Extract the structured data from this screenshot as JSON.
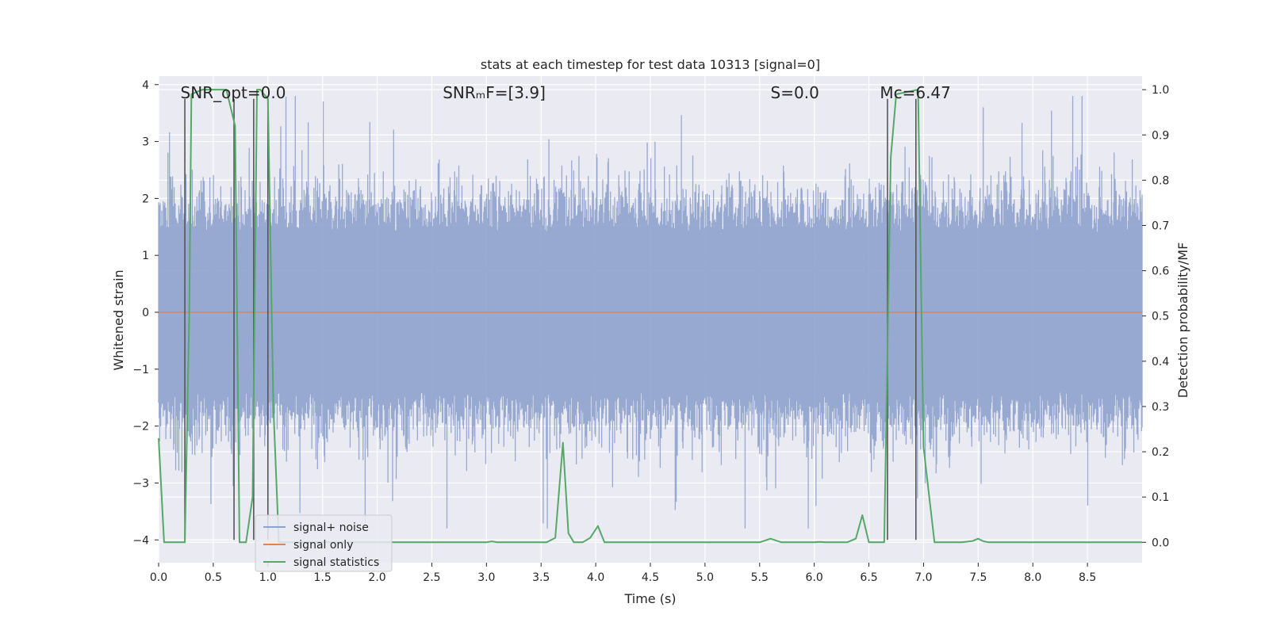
{
  "chart_data": {
    "type": "line",
    "title": "stats at each timestep for test data 10313 [signal=0]",
    "xlabel": "Time (s)",
    "ylabel_left": "Whitened strain",
    "ylabel_right": "Detection probability/MF",
    "xlim": [
      0,
      9.0
    ],
    "ylim_left": [
      -4.4,
      4.15
    ],
    "ylim_right": [
      -0.045,
      1.03
    ],
    "x_ticks": [
      "0.0",
      "0.5",
      "1.0",
      "1.5",
      "2.0",
      "2.5",
      "3.0",
      "3.5",
      "4.0",
      "4.5",
      "5.0",
      "5.5",
      "6.0",
      "6.5",
      "7.0",
      "7.5",
      "8.0",
      "8.5"
    ],
    "x_tick_values": [
      0,
      0.5,
      1.0,
      1.5,
      2.0,
      2.5,
      3.0,
      3.5,
      4.0,
      4.5,
      5.0,
      5.5,
      6.0,
      6.5,
      7.0,
      7.5,
      8.0,
      8.5
    ],
    "y_left_ticks": [
      "−4",
      "−3",
      "−2",
      "−1",
      "0",
      "1",
      "2",
      "3",
      "4"
    ],
    "y_left_tick_values": [
      -4,
      -3,
      -2,
      -1,
      0,
      1,
      2,
      3,
      4
    ],
    "y_right_ticks": [
      "0.0",
      "0.1",
      "0.2",
      "0.3",
      "0.4",
      "0.5",
      "0.6",
      "0.7",
      "0.8",
      "0.9",
      "1.0"
    ],
    "y_right_tick_values": [
      0,
      0.1,
      0.2,
      0.3,
      0.4,
      0.5,
      0.6,
      0.7,
      0.8,
      0.9,
      1.0
    ],
    "grid": true,
    "legend_position": "lower-left",
    "annotations": [
      {
        "text": "SNR_opt=0.0",
        "x": 0.2
      },
      {
        "text": "SNRₘF=[3.9]",
        "x": 2.6
      },
      {
        "text": "S=0.0",
        "x": 5.6
      },
      {
        "text": "Mᴄ=6.47",
        "x": 6.6
      }
    ],
    "noise": {
      "name": "signal+ noise",
      "color": "#8ea2cc",
      "typical_amplitude": 1.4,
      "peak_amplitude": 3.8
    },
    "signal_only": {
      "name": "signal only",
      "color": "#dd8452",
      "value": 0
    },
    "statistics": {
      "name": "signal statistics",
      "color": "#55a868",
      "x": [
        0.0,
        0.05,
        0.24,
        0.28,
        0.3,
        0.4,
        0.5,
        0.62,
        0.7,
        0.74,
        0.8,
        0.86,
        0.9,
        0.93,
        1.0,
        1.05,
        1.1,
        3.0,
        3.05,
        3.1,
        3.55,
        3.63,
        3.7,
        3.75,
        3.8,
        3.88,
        3.95,
        4.02,
        4.08,
        4.3,
        5.5,
        5.6,
        5.7,
        6.0,
        6.05,
        6.1,
        6.3,
        6.38,
        6.44,
        6.5,
        6.55,
        6.64,
        6.7,
        6.75,
        6.95,
        7.0,
        7.1,
        7.35,
        7.45,
        7.5,
        7.55,
        7.6,
        9.0
      ],
      "y": [
        0.23,
        0.0,
        0.0,
        0.5,
        0.99,
        1.0,
        1.0,
        1.0,
        0.92,
        0.0,
        0.0,
        0.1,
        1.0,
        1.0,
        0.98,
        0.3,
        0.0,
        0.0,
        0.002,
        0.0,
        0.0,
        0.01,
        0.22,
        0.02,
        0.0,
        0.0,
        0.01,
        0.036,
        0.0,
        0.0,
        0.0,
        0.008,
        0.0,
        0.0,
        0.001,
        0.0,
        0.0,
        0.008,
        0.06,
        0.0,
        0.0,
        0.0,
        0.85,
        0.99,
        1.0,
        0.21,
        0.0,
        0.0,
        0.003,
        0.008,
        0.002,
        0.0,
        0.0
      ]
    },
    "vertical_markers": {
      "color": "#555555",
      "x": [
        0.24,
        0.69,
        0.87,
        1.0,
        6.67,
        6.93
      ],
      "top": 3.75,
      "bottom": -4.0
    }
  }
}
